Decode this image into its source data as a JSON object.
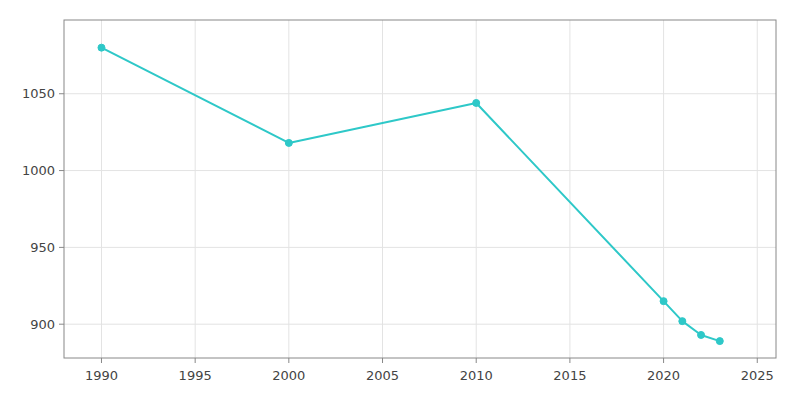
{
  "chart_data": {
    "type": "line",
    "x": [
      1990,
      2000,
      2010,
      2020,
      2021,
      2022,
      2023
    ],
    "values": [
      1080,
      1018,
      1044,
      915,
      902,
      893,
      889
    ],
    "color": "#2ec8c8",
    "marker": "circle",
    "xlim": [
      1988,
      2026
    ],
    "ylim": [
      878,
      1098
    ],
    "xticks": [
      1990,
      1995,
      2000,
      2005,
      2010,
      2015,
      2020,
      2025
    ],
    "yticks": [
      900,
      950,
      1000,
      1050
    ],
    "grid": true
  }
}
